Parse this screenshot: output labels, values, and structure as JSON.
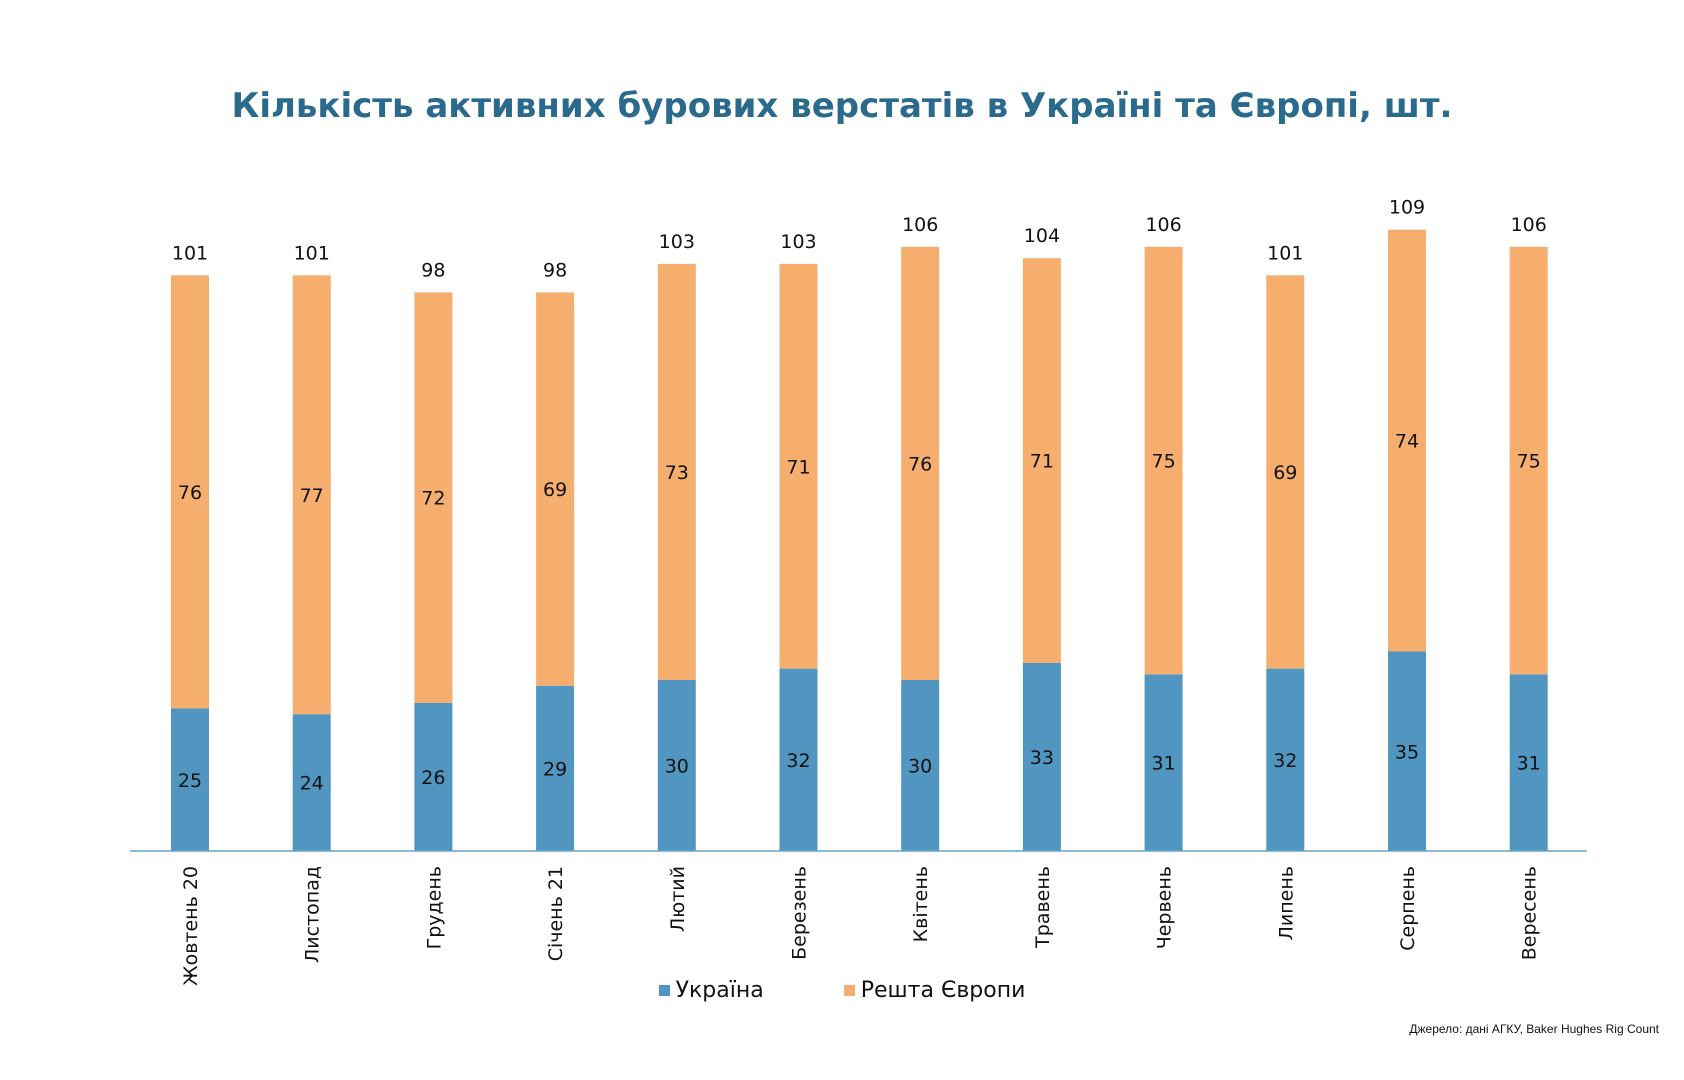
{
  "chart_data": {
    "type": "bar",
    "stacked": true,
    "title": "Кількість активних бурових верстатів в Україні та Європі, шт.",
    "categories": [
      "Жовтень 20",
      "Листопад",
      "Грудень",
      "Січень 21",
      "Лютий",
      "Березень",
      "Квітень",
      "Травень",
      "Червень",
      "Липень",
      "Серпень",
      "Вересень"
    ],
    "series": [
      {
        "name": "Україна",
        "color": "#5096c0",
        "values": [
          25,
          24,
          26,
          29,
          30,
          32,
          30,
          33,
          31,
          32,
          35,
          31
        ]
      },
      {
        "name": "Решта Європи",
        "color": "#f5ae6e",
        "values": [
          76,
          77,
          72,
          69,
          73,
          71,
          76,
          71,
          75,
          69,
          74,
          75
        ]
      }
    ],
    "totals": [
      101,
      101,
      98,
      98,
      103,
      103,
      106,
      104,
      106,
      101,
      109,
      106
    ],
    "ylim": [
      0,
      109
    ],
    "legend_position": "bottom",
    "grid": false
  },
  "source": "Джерело: дані АГКУ, Baker Hughes Rig Count"
}
